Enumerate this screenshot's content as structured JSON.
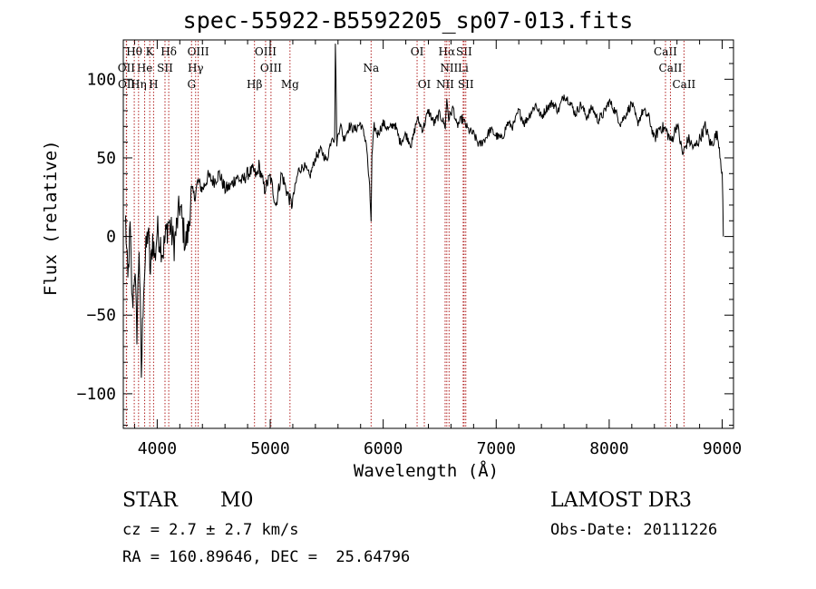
{
  "chart_data": {
    "type": "line",
    "title": "spec-55922-B5592205_sp07-013.fits",
    "xlabel": "Wavelength (Å)",
    "ylabel": "Flux (relative)",
    "xlim": [
      3700,
      9100
    ],
    "ylim": [
      -122,
      125
    ],
    "xticks": [
      4000,
      5000,
      6000,
      7000,
      8000,
      9000
    ],
    "yticks": [
      -100,
      -50,
      0,
      50,
      100
    ],
    "series": [
      {
        "name": "flux",
        "x": [
          3720,
          3740,
          3760,
          3780,
          3800,
          3820,
          3840,
          3860,
          3880,
          3900,
          3920,
          3940,
          3960,
          3980,
          4000,
          4050,
          4100,
          4150,
          4200,
          4250,
          4280,
          4300,
          4330,
          4360,
          4400,
          4450,
          4500,
          4550,
          4600,
          4650,
          4700,
          4750,
          4800,
          4850,
          4880,
          4900,
          4950,
          5000,
          5050,
          5100,
          5150,
          5190,
          5250,
          5300,
          5350,
          5400,
          5450,
          5500,
          5550,
          5570,
          5577,
          5590,
          5620,
          5650,
          5700,
          5750,
          5800,
          5850,
          5880,
          5893,
          5900,
          5920,
          5950,
          6000,
          6050,
          6100,
          6150,
          6200,
          6250,
          6300,
          6350,
          6400,
          6450,
          6500,
          6550,
          6563,
          6580,
          6620,
          6650,
          6700,
          6750,
          6800,
          6850,
          6900,
          6950,
          7000,
          7050,
          7100,
          7150,
          7200,
          7250,
          7300,
          7350,
          7400,
          7450,
          7500,
          7550,
          7600,
          7650,
          7700,
          7750,
          7800,
          7850,
          7900,
          7950,
          8000,
          8050,
          8100,
          8150,
          8200,
          8250,
          8300,
          8350,
          8400,
          8450,
          8500,
          8550,
          8600,
          8650,
          8700,
          8750,
          8800,
          8850,
          8900,
          8950,
          8970,
          9000,
          9010
        ],
        "y": [
          10,
          -30,
          5,
          -45,
          -20,
          -60,
          -5,
          -88,
          -30,
          -10,
          5,
          -25,
          0,
          -15,
          5,
          -10,
          10,
          -5,
          20,
          -5,
          5,
          30,
          25,
          35,
          30,
          38,
          35,
          40,
          30,
          32,
          38,
          35,
          40,
          42,
          38,
          45,
          30,
          38,
          20,
          40,
          28,
          20,
          42,
          45,
          38,
          50,
          55,
          48,
          65,
          60,
          125,
          60,
          72,
          62,
          70,
          68,
          72,
          60,
          30,
          10,
          50,
          70,
          65,
          72,
          68,
          72,
          60,
          65,
          58,
          75,
          68,
          80,
          72,
          78,
          70,
          88,
          75,
          82,
          70,
          75,
          68,
          65,
          58,
          62,
          68,
          64,
          62,
          72,
          70,
          80,
          72,
          78,
          84,
          76,
          82,
          85,
          80,
          90,
          86,
          78,
          84,
          76,
          82,
          74,
          78,
          86,
          80,
          72,
          78,
          85,
          72,
          80,
          76,
          62,
          70,
          68,
          60,
          72,
          52,
          62,
          56,
          62,
          70,
          58,
          65,
          60,
          40,
          0
        ]
      }
    ],
    "lines": [
      {
        "label": "Hθ",
        "x": 3797,
        "row": 0
      },
      {
        "label": "K",
        "x": 3934,
        "row": 0
      },
      {
        "label": "Hδ",
        "x": 4102,
        "row": 0
      },
      {
        "label": "OIII",
        "x": 4363,
        "row": 0
      },
      {
        "label": "OIII",
        "x": 4959,
        "row": 0
      },
      {
        "label": "OI",
        "x": 6300,
        "row": 0
      },
      {
        "label": "Hα",
        "x": 6563,
        "row": 0
      },
      {
        "label": "SII",
        "x": 6716,
        "row": 0
      },
      {
        "label": "CaII",
        "x": 8498,
        "row": 0
      },
      {
        "label": "OII",
        "x": 3727,
        "row": 1
      },
      {
        "label": "He",
        "x": 3889,
        "row": 1
      },
      {
        "label": "SII",
        "x": 4069,
        "row": 1
      },
      {
        "label": "Hγ",
        "x": 4340,
        "row": 1
      },
      {
        "label": "OIII",
        "x": 5007,
        "row": 1
      },
      {
        "label": "NII",
        "x": 6583,
        "row": 1
      },
      {
        "label": "Li",
        "x": 6708,
        "row": 1
      },
      {
        "label": "CaII",
        "x": 8542,
        "row": 1
      },
      {
        "label": "OII",
        "x": 3729,
        "row": 2
      },
      {
        "label": "Hη",
        "x": 3835,
        "row": 2
      },
      {
        "label": "H",
        "x": 3968,
        "row": 2
      },
      {
        "label": "G",
        "x": 4304,
        "row": 2
      },
      {
        "label": "Hβ",
        "x": 4861,
        "row": 2
      },
      {
        "label": "Mg",
        "x": 5175,
        "row": 2
      },
      {
        "label": "Na",
        "x": 5893,
        "row": 1
      },
      {
        "label": "OI",
        "x": 6364,
        "row": 2
      },
      {
        "label": "NII",
        "x": 6548,
        "row": 2
      },
      {
        "label": "SII",
        "x": 6731,
        "row": 2
      },
      {
        "label": "CaII",
        "x": 8662,
        "row": 2
      }
    ]
  },
  "info": {
    "class": "STAR",
    "subclass": "M0",
    "survey": "LAMOST DR3",
    "cz": "cz = 2.7 ± 2.7 km/s",
    "obs_date": "Obs-Date: 20111226",
    "coords": "RA = 160.89646, DEC =  25.64796"
  }
}
